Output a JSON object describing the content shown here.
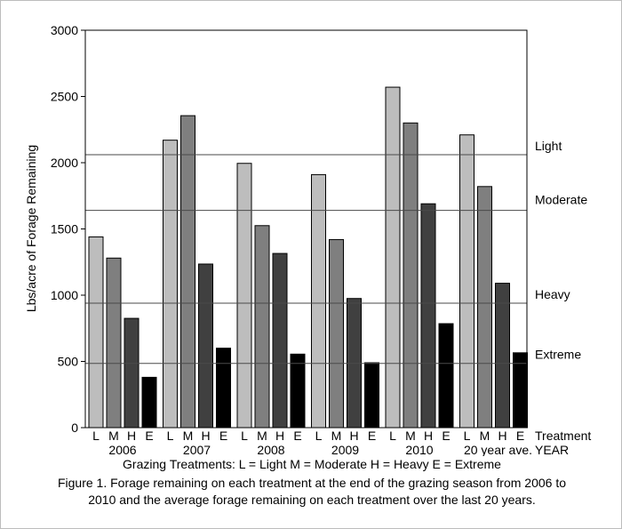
{
  "chart_data": {
    "type": "bar",
    "ylabel": "Lbs/acre of Forage Remaining",
    "ylim": [
      0,
      3000
    ],
    "yticks": [
      0,
      500,
      1000,
      1500,
      2000,
      2500,
      3000
    ],
    "groups": [
      "2006",
      "2007",
      "2008",
      "2009",
      "2010",
      "20 year ave."
    ],
    "treatment_codes": [
      "L",
      "M",
      "H",
      "E"
    ],
    "series_colors": [
      "#bdbdbd",
      "#7f7f7f",
      "#404040",
      "#000000"
    ],
    "values": [
      [
        1440,
        1280,
        825,
        380
      ],
      [
        2170,
        2355,
        1235,
        600
      ],
      [
        1995,
        1525,
        1315,
        555
      ],
      [
        1910,
        1420,
        975,
        490
      ],
      [
        2570,
        2300,
        1690,
        785
      ],
      [
        2210,
        1820,
        1090,
        565
      ]
    ],
    "reference_lines": [
      {
        "label": "Light",
        "value": 2060
      },
      {
        "label": "Moderate",
        "value": 1640
      },
      {
        "label": "Heavy",
        "value": 940
      },
      {
        "label": "Extreme",
        "value": 485
      }
    ],
    "x_row_label": "Treatment",
    "x_group_label": "YEAR",
    "grid": false
  },
  "legend_text": "Grazing Treatments:  L = Light  M = Moderate  H = Heavy  E = Extreme",
  "figure_caption": "Figure 1. Forage remaining on each treatment at the end of the grazing season from 2006 to 2010 and the average forage remaining on each treatment over the last 20 years."
}
